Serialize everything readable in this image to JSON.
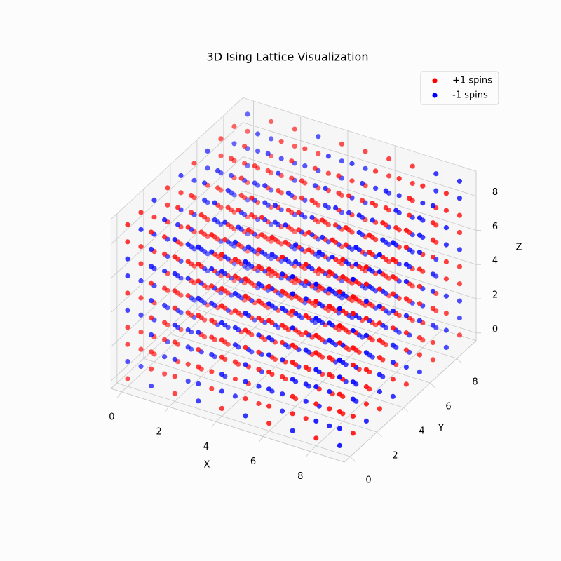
{
  "chart_data": {
    "type": "scatter3d",
    "title": "3D Ising Lattice Visualization",
    "x_label": "X",
    "y_label": "Y",
    "z_label": "Z",
    "coords": [
      0,
      1,
      2,
      3,
      4,
      5,
      6,
      7,
      8,
      9
    ],
    "xlim": [
      -0.45,
      9.45
    ],
    "ylim": [
      -0.45,
      9.45
    ],
    "zlim": [
      -0.45,
      9.45
    ],
    "xticks": [
      0,
      2,
      4,
      6,
      8
    ],
    "yticks": [
      0,
      2,
      4,
      6,
      8
    ],
    "zticks": [
      0,
      2,
      4,
      6,
      8
    ],
    "grid": true,
    "legend": "upper right",
    "series": [
      {
        "name": "+1 spins",
        "color": "#ff0000",
        "value": 1
      },
      {
        "name": "-1 spins",
        "color": "#0000ff",
        "value": -1
      }
    ],
    "spins": [
      [
        [
          1,
          -1,
          1,
          1,
          -1,
          1,
          -1,
          -1,
          1,
          1
        ],
        [
          -1,
          1,
          1,
          -1,
          1,
          -1,
          1,
          1,
          -1,
          1
        ],
        [
          1,
          1,
          -1,
          1,
          -1,
          -1,
          1,
          -1,
          1,
          -1
        ],
        [
          -1,
          1,
          -1,
          1,
          1,
          -1,
          -1,
          1,
          1,
          1
        ],
        [
          1,
          -1,
          1,
          -1,
          -1,
          1,
          1,
          -1,
          1,
          -1
        ],
        [
          -1,
          -1,
          1,
          1,
          -1,
          1,
          -1,
          1,
          -1,
          1
        ],
        [
          1,
          1,
          -1,
          -1,
          1,
          1,
          -1,
          1,
          -1,
          -1
        ],
        [
          -1,
          1,
          1,
          -1,
          -1,
          1,
          1,
          -1,
          1,
          1
        ],
        [
          1,
          -1,
          -1,
          1,
          1,
          -1,
          1,
          1,
          -1,
          1
        ],
        [
          -1,
          1,
          -1,
          1,
          -1,
          1,
          -1,
          -1,
          1,
          -1
        ]
      ],
      [
        [
          -1,
          1,
          1,
          -1,
          1,
          -1,
          1,
          -1,
          -1,
          1
        ],
        [
          1,
          -1,
          1,
          1,
          -1,
          1,
          -1,
          1,
          1,
          -1
        ],
        [
          1,
          1,
          -1,
          -1,
          1,
          -1,
          1,
          1,
          -1,
          1
        ],
        [
          -1,
          -1,
          1,
          -1,
          1,
          1,
          -1,
          -1,
          1,
          1
        ],
        [
          1,
          1,
          -1,
          1,
          -1,
          -1,
          1,
          1,
          -1,
          -1
        ],
        [
          -1,
          1,
          1,
          -1,
          1,
          1,
          -1,
          1,
          1,
          -1
        ],
        [
          1,
          -1,
          -1,
          1,
          -1,
          1,
          1,
          -1,
          -1,
          1
        ],
        [
          1,
          1,
          -1,
          -1,
          1,
          -1,
          1,
          -1,
          1,
          1
        ],
        [
          -1,
          -1,
          1,
          1,
          -1,
          1,
          -1,
          1,
          -1,
          -1
        ],
        [
          1,
          -1,
          1,
          -1,
          1,
          -1,
          1,
          1,
          -1,
          1
        ]
      ],
      [
        [
          1,
          1,
          -1,
          1,
          -1,
          1,
          1,
          -1,
          1,
          -1
        ],
        [
          -1,
          1,
          -1,
          -1,
          1,
          1,
          -1,
          1,
          -1,
          1
        ],
        [
          1,
          -1,
          1,
          1,
          -1,
          -1,
          1,
          -1,
          1,
          1
        ],
        [
          -1,
          1,
          1,
          -1,
          -1,
          1,
          1,
          1,
          -1,
          -1
        ],
        [
          1,
          -1,
          -1,
          1,
          1,
          -1,
          -1,
          1,
          1,
          -1
        ],
        [
          1,
          1,
          -1,
          -1,
          1,
          1,
          -1,
          -1,
          1,
          1
        ],
        [
          -1,
          1,
          1,
          1,
          -1,
          -1,
          1,
          -1,
          -1,
          1
        ],
        [
          1,
          -1,
          1,
          -1,
          1,
          1,
          -1,
          1,
          1,
          -1
        ],
        [
          -1,
          -1,
          -1,
          1,
          1,
          -1,
          1,
          1,
          -1,
          1
        ],
        [
          1,
          1,
          -1,
          1,
          -1,
          1,
          -1,
          -1,
          1,
          1
        ]
      ],
      [
        [
          -1,
          -1,
          1,
          1,
          -1,
          1,
          -1,
          1,
          1,
          -1
        ],
        [
          1,
          1,
          -1,
          1,
          1,
          -1,
          1,
          -1,
          -1,
          1
        ],
        [
          -1,
          1,
          1,
          -1,
          1,
          1,
          -1,
          -1,
          1,
          -1
        ],
        [
          1,
          -1,
          -1,
          1,
          -1,
          1,
          1,
          1,
          -1,
          1
        ],
        [
          -1,
          1,
          1,
          -1,
          1,
          -1,
          -1,
          1,
          1,
          1
        ],
        [
          1,
          -1,
          1,
          1,
          -1,
          -1,
          1,
          -1,
          -1,
          -1
        ],
        [
          -1,
          1,
          -1,
          1,
          1,
          1,
          -1,
          1,
          1,
          -1
        ],
        [
          1,
          1,
          1,
          -1,
          -1,
          1,
          1,
          -1,
          1,
          1
        ],
        [
          -1,
          -1,
          1,
          1,
          1,
          -1,
          -1,
          1,
          -1,
          1
        ],
        [
          1,
          1,
          -1,
          -1,
          1,
          1,
          1,
          -1,
          1,
          -1
        ]
      ],
      [
        [
          1,
          -1,
          -1,
          1,
          1,
          -1,
          1,
          1,
          -1,
          1
        ],
        [
          -1,
          1,
          1,
          -1,
          -1,
          1,
          -1,
          1,
          1,
          -1
        ],
        [
          1,
          1,
          -1,
          1,
          -1,
          1,
          1,
          -1,
          -1,
          1
        ],
        [
          -1,
          -1,
          1,
          1,
          1,
          -1,
          1,
          -1,
          1,
          1
        ],
        [
          1,
          1,
          -1,
          -1,
          1,
          1,
          -1,
          1,
          -1,
          -1
        ],
        [
          -1,
          1,
          1,
          1,
          -1,
          -1,
          1,
          1,
          1,
          -1
        ],
        [
          1,
          -1,
          1,
          -1,
          1,
          -1,
          -1,
          -1,
          1,
          1
        ],
        [
          -1,
          1,
          -1,
          1,
          -1,
          1,
          1,
          1,
          -1,
          1
        ],
        [
          1,
          1,
          1,
          -1,
          -1,
          1,
          -1,
          1,
          1,
          -1
        ],
        [
          -1,
          -1,
          1,
          1,
          1,
          -1,
          1,
          -1,
          -1,
          1
        ]
      ],
      [
        [
          -1,
          1,
          -1,
          -1,
          1,
          1,
          -1,
          1,
          1,
          -1
        ],
        [
          1,
          -1,
          1,
          1,
          -1,
          1,
          1,
          -1,
          1,
          1
        ],
        [
          -1,
          1,
          1,
          -1,
          1,
          -1,
          -1,
          1,
          -1,
          1
        ],
        [
          1,
          1,
          -1,
          1,
          -1,
          1,
          1,
          -1,
          1,
          -1
        ],
        [
          -1,
          -1,
          1,
          -1,
          1,
          1,
          -1,
          1,
          1,
          1
        ],
        [
          1,
          1,
          -1,
          1,
          1,
          -1,
          1,
          -1,
          -1,
          1
        ],
        [
          -1,
          1,
          1,
          -1,
          -1,
          1,
          1,
          1,
          -1,
          -1
        ],
        [
          1,
          -1,
          -1,
          1,
          1,
          -1,
          -1,
          1,
          1,
          1
        ],
        [
          -1,
          1,
          1,
          1,
          -1,
          1,
          1,
          -1,
          1,
          -1
        ],
        [
          1,
          -1,
          1,
          -1,
          1,
          1,
          -1,
          1,
          -1,
          1
        ]
      ],
      [
        [
          1,
          1,
          -1,
          1,
          -1,
          -1,
          1,
          -1,
          1,
          1
        ],
        [
          -1,
          -1,
          1,
          -1,
          1,
          1,
          -1,
          1,
          -1,
          1
        ],
        [
          1,
          -1,
          1,
          1,
          1,
          -1,
          1,
          1,
          -1,
          -1
        ],
        [
          -1,
          1,
          -1,
          -1,
          1,
          1,
          -1,
          -1,
          1,
          1
        ],
        [
          1,
          1,
          1,
          -1,
          -1,
          1,
          1,
          -1,
          -1,
          1
        ],
        [
          -1,
          -1,
          1,
          1,
          -1,
          -1,
          1,
          1,
          1,
          -1
        ],
        [
          1,
          1,
          -1,
          1,
          1,
          -1,
          -1,
          1,
          -1,
          1
        ],
        [
          -1,
          1,
          1,
          -1,
          1,
          1,
          -1,
          -1,
          1,
          -1
        ],
        [
          1,
          -1,
          -1,
          1,
          -1,
          1,
          1,
          1,
          -1,
          1
        ],
        [
          -1,
          1,
          1,
          1,
          -1,
          -1,
          1,
          -1,
          1,
          1
        ]
      ],
      [
        [
          -1,
          1,
          1,
          -1,
          1,
          1,
          -1,
          1,
          -1,
          -1
        ],
        [
          1,
          -1,
          -1,
          1,
          -1,
          1,
          1,
          -1,
          1,
          1
        ],
        [
          -1,
          1,
          -1,
          1,
          1,
          -1,
          -1,
          1,
          1,
          -1
        ],
        [
          1,
          1,
          1,
          -1,
          -1,
          1,
          -1,
          1,
          -1,
          1
        ],
        [
          -1,
          -1,
          1,
          1,
          1,
          -1,
          1,
          -1,
          1,
          1
        ],
        [
          1,
          1,
          -1,
          -1,
          1,
          1,
          1,
          -1,
          -1,
          -1
        ],
        [
          -1,
          1,
          1,
          1,
          -1,
          -1,
          1,
          1,
          -1,
          1
        ],
        [
          1,
          -1,
          -1,
          -1,
          1,
          1,
          -1,
          1,
          1,
          -1
        ],
        [
          -1,
          1,
          1,
          -1,
          -1,
          1,
          1,
          -1,
          -1,
          1
        ],
        [
          1,
          -1,
          1,
          1,
          -1,
          -1,
          -1,
          1,
          1,
          1
        ]
      ],
      [
        [
          1,
          -1,
          1,
          -1,
          -1,
          1,
          1,
          -1,
          1,
          -1
        ],
        [
          -1,
          1,
          -1,
          1,
          1,
          -1,
          -1,
          1,
          -1,
          1
        ],
        [
          1,
          1,
          1,
          -1,
          -1,
          1,
          1,
          -1,
          1,
          1
        ],
        [
          -1,
          -1,
          -1,
          1,
          1,
          -1,
          1,
          1,
          -1,
          -1
        ],
        [
          1,
          1,
          -1,
          1,
          -1,
          1,
          -1,
          -1,
          1,
          1
        ],
        [
          -1,
          1,
          1,
          -1,
          1,
          -1,
          1,
          1,
          -1,
          1
        ],
        [
          1,
          -1,
          -1,
          1,
          -1,
          1,
          1,
          -1,
          1,
          -1
        ],
        [
          -1,
          -1,
          1,
          1,
          1,
          -1,
          -1,
          1,
          1,
          1
        ],
        [
          1,
          1,
          -1,
          -1,
          1,
          1,
          -1,
          -1,
          -1,
          1
        ],
        [
          -1,
          1,
          1,
          -1,
          -1,
          1,
          1,
          1,
          -1,
          -1
        ]
      ],
      [
        [
          -1,
          -1,
          1,
          1,
          -1,
          -1,
          1,
          1,
          -1,
          1
        ],
        [
          1,
          1,
          -1,
          -1,
          1,
          1,
          -1,
          1,
          1,
          -1
        ],
        [
          -1,
          1,
          1,
          1,
          -1,
          -1,
          1,
          -1,
          1,
          1
        ],
        [
          1,
          -1,
          -1,
          1,
          1,
          1,
          -1,
          1,
          -1,
          -1
        ],
        [
          -1,
          1,
          -1,
          -1,
          1,
          -1,
          1,
          1,
          1,
          -1
        ],
        [
          1,
          -1,
          1,
          1,
          -1,
          1,
          -1,
          -1,
          1,
          1
        ],
        [
          -1,
          1,
          1,
          -1,
          1,
          1,
          1,
          -1,
          -1,
          -1
        ],
        [
          1,
          1,
          -1,
          1,
          -1,
          -1,
          1,
          1,
          1,
          -1
        ],
        [
          -1,
          -1,
          1,
          -1,
          1,
          1,
          -1,
          -1,
          1,
          1
        ],
        [
          1,
          -1,
          -1,
          1,
          1,
          -1,
          1,
          1,
          -1,
          -1
        ]
      ]
    ]
  }
}
